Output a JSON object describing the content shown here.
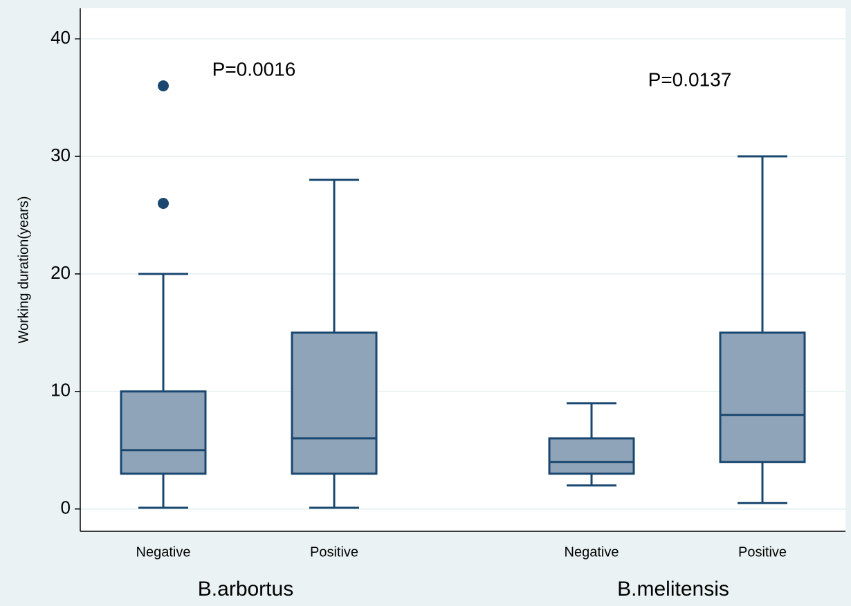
{
  "chart_data": {
    "type": "box",
    "y_label": "Working duration(years)",
    "groups": [
      "B.arbortus",
      "B.melitensis"
    ],
    "categories": [
      "Negative",
      "Positive",
      "Negative",
      "Positive"
    ],
    "boxes": [
      {
        "whisker_low": 0.1,
        "q1": 3,
        "median": 5,
        "q3": 10,
        "whisker_high": 20,
        "outliers": [
          26,
          36
        ]
      },
      {
        "whisker_low": 0.1,
        "q1": 3,
        "median": 6,
        "q3": 15,
        "whisker_high": 28,
        "outliers": []
      },
      {
        "whisker_low": 2,
        "q1": 3,
        "median": 4,
        "q3": 6,
        "whisker_high": 9,
        "outliers": []
      },
      {
        "whisker_low": 0.5,
        "q1": 4,
        "median": 8,
        "q3": 15,
        "whisker_high": 30,
        "outliers": []
      }
    ],
    "annotations": [
      "P=0.0016",
      "P=0.0137"
    ],
    "fill_color": "#90a4b9",
    "line_color": "#1a476f",
    "ylim": [
      -1.9,
      42.6
    ],
    "yticks": [
      0,
      10,
      20,
      30,
      40
    ],
    "grid": true
  }
}
